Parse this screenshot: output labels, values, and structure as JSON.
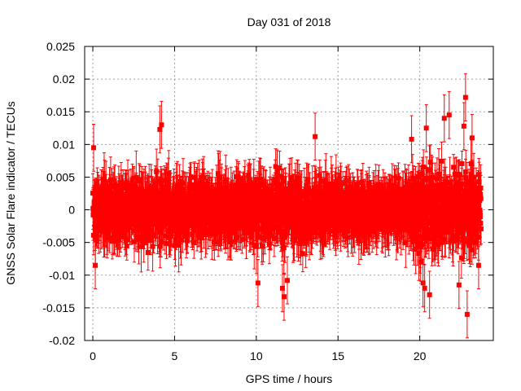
{
  "chart_data": {
    "type": "scatter",
    "title": "Day 031 of 2018",
    "xlabel": "GPS time / hours",
    "ylabel": "GNSS Solar Flare indicator / TECUs",
    "xlim": [
      -0.5,
      24.5
    ],
    "ylim": [
      -0.02,
      0.025
    ],
    "xticks": [
      0,
      5,
      10,
      15,
      20
    ],
    "xtick_labels": [
      "0",
      "5",
      "10",
      "15",
      "20"
    ],
    "yticks": [
      -0.02,
      -0.015,
      -0.01,
      -0.005,
      0,
      0.005,
      0.01,
      0.015,
      0.02,
      0.025
    ],
    "ytick_labels": [
      "-0.02",
      "-0.015",
      "-0.01",
      "-0.005",
      "0",
      "0.005",
      "0.01",
      "0.015",
      "0.02",
      "0.025"
    ],
    "grid": true,
    "series_color": "#ff0000",
    "series": [
      {
        "name": "solar flare indicator",
        "x_start": 0.0,
        "x_end": 23.75,
        "n_points": 2400,
        "typical_spread": 0.004,
        "typical_error": 0.003,
        "notable_points": [
          {
            "x": 0.05,
            "y": 0.0095
          },
          {
            "x": 0.15,
            "y": -0.0085
          },
          {
            "x": 4.1,
            "y": 0.0123
          },
          {
            "x": 4.2,
            "y": 0.013
          },
          {
            "x": 10.1,
            "y": -0.0112
          },
          {
            "x": 11.6,
            "y": -0.012
          },
          {
            "x": 11.7,
            "y": -0.0133
          },
          {
            "x": 11.9,
            "y": -0.0108
          },
          {
            "x": 13.6,
            "y": 0.0112
          },
          {
            "x": 19.5,
            "y": 0.0108
          },
          {
            "x": 20.2,
            "y": -0.0112
          },
          {
            "x": 20.3,
            "y": -0.012
          },
          {
            "x": 20.4,
            "y": 0.0125
          },
          {
            "x": 20.6,
            "y": -0.013
          },
          {
            "x": 21.5,
            "y": 0.014
          },
          {
            "x": 21.8,
            "y": 0.0145
          },
          {
            "x": 22.4,
            "y": -0.0115
          },
          {
            "x": 22.7,
            "y": 0.0128
          },
          {
            "x": 22.8,
            "y": 0.0172
          },
          {
            "x": 22.9,
            "y": -0.016
          },
          {
            "x": 23.2,
            "y": 0.011
          },
          {
            "x": 23.6,
            "y": -0.0085
          }
        ]
      }
    ]
  }
}
